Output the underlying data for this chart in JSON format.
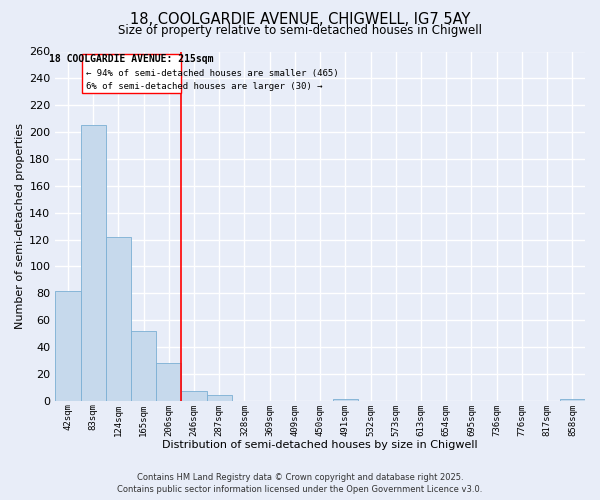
{
  "title_line1": "18, COOLGARDIE AVENUE, CHIGWELL, IG7 5AY",
  "title_line2": "Size of property relative to semi-detached houses in Chigwell",
  "xlabel": "Distribution of semi-detached houses by size in Chigwell",
  "ylabel": "Number of semi-detached properties",
  "bin_labels": [
    "42sqm",
    "83sqm",
    "124sqm",
    "165sqm",
    "206sqm",
    "246sqm",
    "287sqm",
    "328sqm",
    "369sqm",
    "409sqm",
    "450sqm",
    "491sqm",
    "532sqm",
    "573sqm",
    "613sqm",
    "654sqm",
    "695sqm",
    "736sqm",
    "776sqm",
    "817sqm",
    "858sqm"
  ],
  "bar_heights": [
    82,
    205,
    122,
    52,
    28,
    7,
    4,
    0,
    0,
    0,
    0,
    1,
    0,
    0,
    0,
    0,
    0,
    0,
    0,
    0,
    1
  ],
  "bar_color": "#c6d9ec",
  "bar_edge_color": "#7bafd4",
  "annotation_title": "18 COOLGARDIE AVENUE: 215sqm",
  "annotation_line2": "← 94% of semi-detached houses are smaller (465)",
  "annotation_line3": "6% of semi-detached houses are larger (30) →",
  "vline_bin": 4.5,
  "ylim": [
    0,
    260
  ],
  "yticks": [
    0,
    20,
    40,
    60,
    80,
    100,
    120,
    140,
    160,
    180,
    200,
    220,
    240,
    260
  ],
  "background_color": "#e8edf8",
  "grid_color": "#ffffff",
  "footer_line1": "Contains HM Land Registry data © Crown copyright and database right 2025.",
  "footer_line2": "Contains public sector information licensed under the Open Government Licence v3.0."
}
